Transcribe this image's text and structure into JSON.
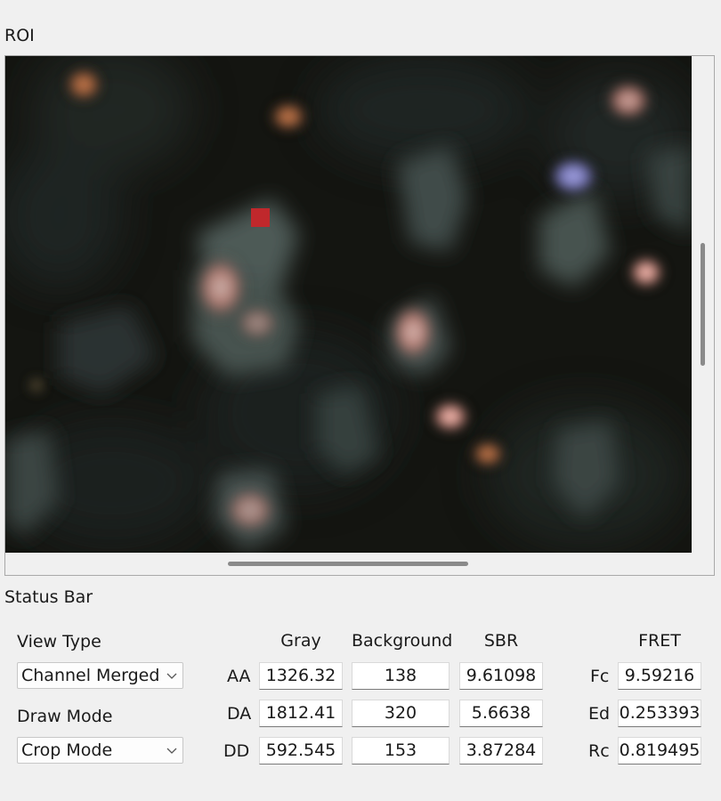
{
  "roi": {
    "title": "ROI"
  },
  "status": {
    "title": "Status Bar",
    "view_type_label": "View Type",
    "view_type_value": "Channel Merged",
    "draw_mode_label": "Draw Mode",
    "draw_mode_value": "Crop Mode"
  },
  "table": {
    "headers": {
      "gray": "Gray",
      "background": "Background",
      "sbr": "SBR",
      "fret": "FRET"
    },
    "rows": [
      {
        "label": "AA",
        "gray": "1326.32",
        "background": "138",
        "sbr": "9.61098",
        "fret_label": "Fc",
        "fret_value": "9.59216"
      },
      {
        "label": "DA",
        "gray": "1812.41",
        "background": "320",
        "sbr": "5.6638",
        "fret_label": "Ed",
        "fret_value": "0.253393"
      },
      {
        "label": "DD",
        "gray": "592.545",
        "background": "153",
        "sbr": "3.87284",
        "fret_label": "Rc",
        "fret_value": "0.819495"
      }
    ]
  },
  "colors": {
    "roi_marker": "#c0282c",
    "viewer_background": "#121410"
  },
  "icons": {
    "combo_arrow": "chevron-down-icon"
  }
}
